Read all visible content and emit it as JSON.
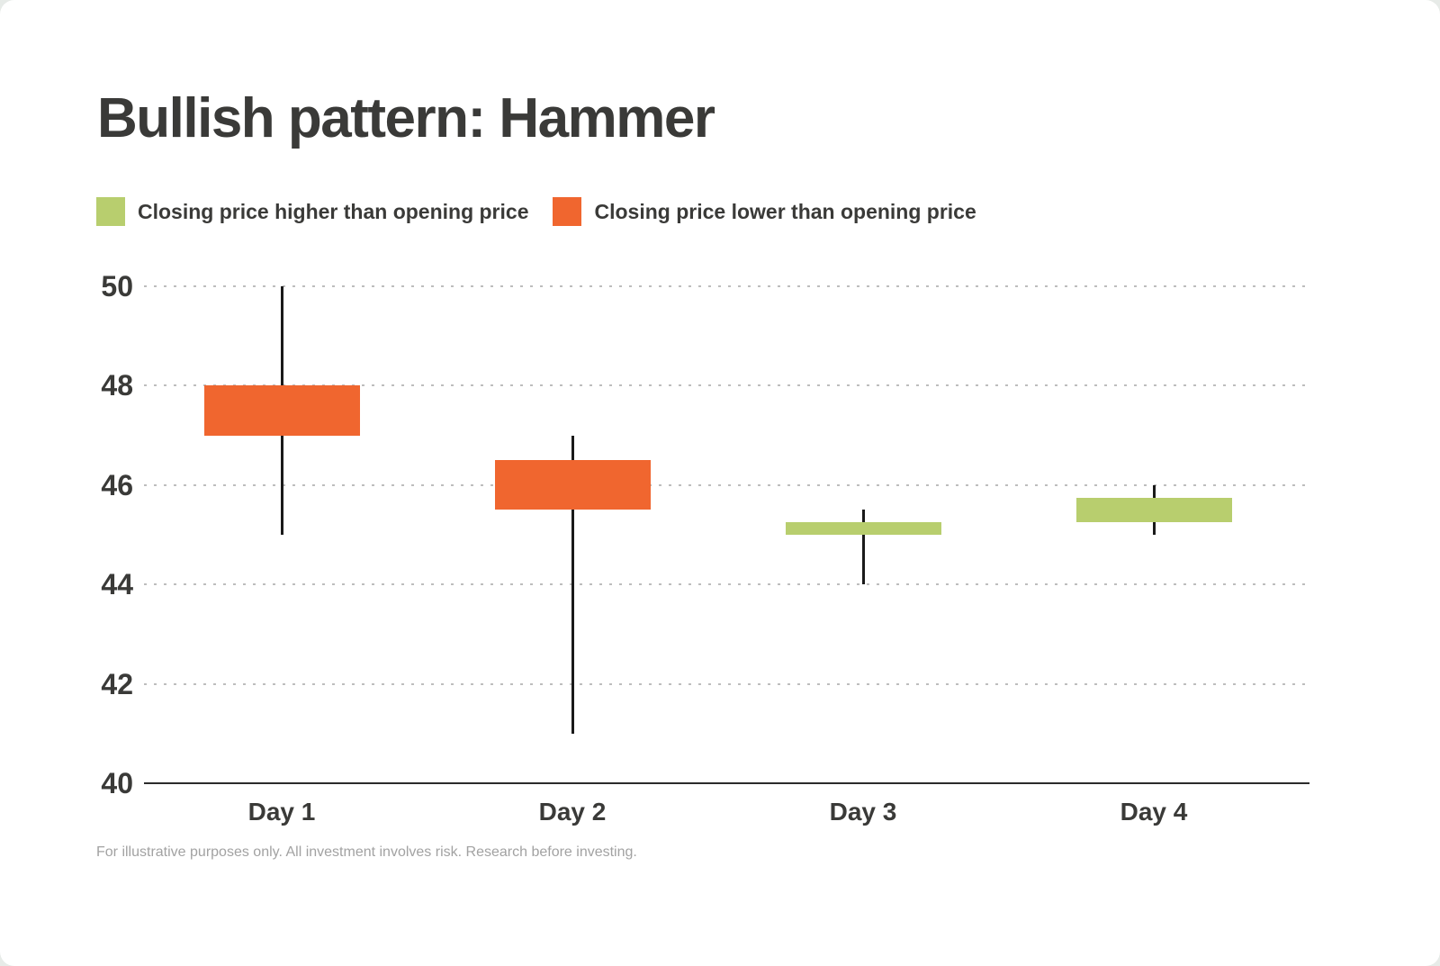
{
  "card": {
    "title": "Bullish pattern: Hammer",
    "footnote": "For illustrative purposes only. All investment involves risk. Research before investing."
  },
  "legend": [
    {
      "label": "Closing price higher than opening price",
      "color": "#b8ce6e",
      "meaning": "bullish"
    },
    {
      "label": "Closing price lower than opening price",
      "color": "#f0662f",
      "meaning": "bearish"
    }
  ],
  "chart_data": {
    "type": "candlestick",
    "title": "Bullish pattern: Hammer",
    "categories": [
      "Day 1",
      "Day 2",
      "Day 3",
      "Day 4"
    ],
    "series": [
      {
        "name": "Day 1",
        "open": 48,
        "high": 50,
        "low": 45,
        "close": 47,
        "direction": "down"
      },
      {
        "name": "Day 2",
        "open": 46.5,
        "high": 47,
        "low": 41,
        "close": 45.5,
        "direction": "down"
      },
      {
        "name": "Day 3",
        "open": 45,
        "high": 45.5,
        "low": 44,
        "close": 45.25,
        "direction": "up"
      },
      {
        "name": "Day 4",
        "open": 45.25,
        "high": 46,
        "low": 45,
        "close": 45.75,
        "direction": "up"
      }
    ],
    "ylim": [
      40,
      50
    ],
    "y_ticks": [
      50,
      48,
      46,
      44,
      42,
      40
    ],
    "grid": "dotted-horizontal",
    "legend_position": "top-left",
    "colors": {
      "up": "#b8ce6e",
      "down": "#f0662f",
      "wick": "#1a1a1a"
    }
  }
}
